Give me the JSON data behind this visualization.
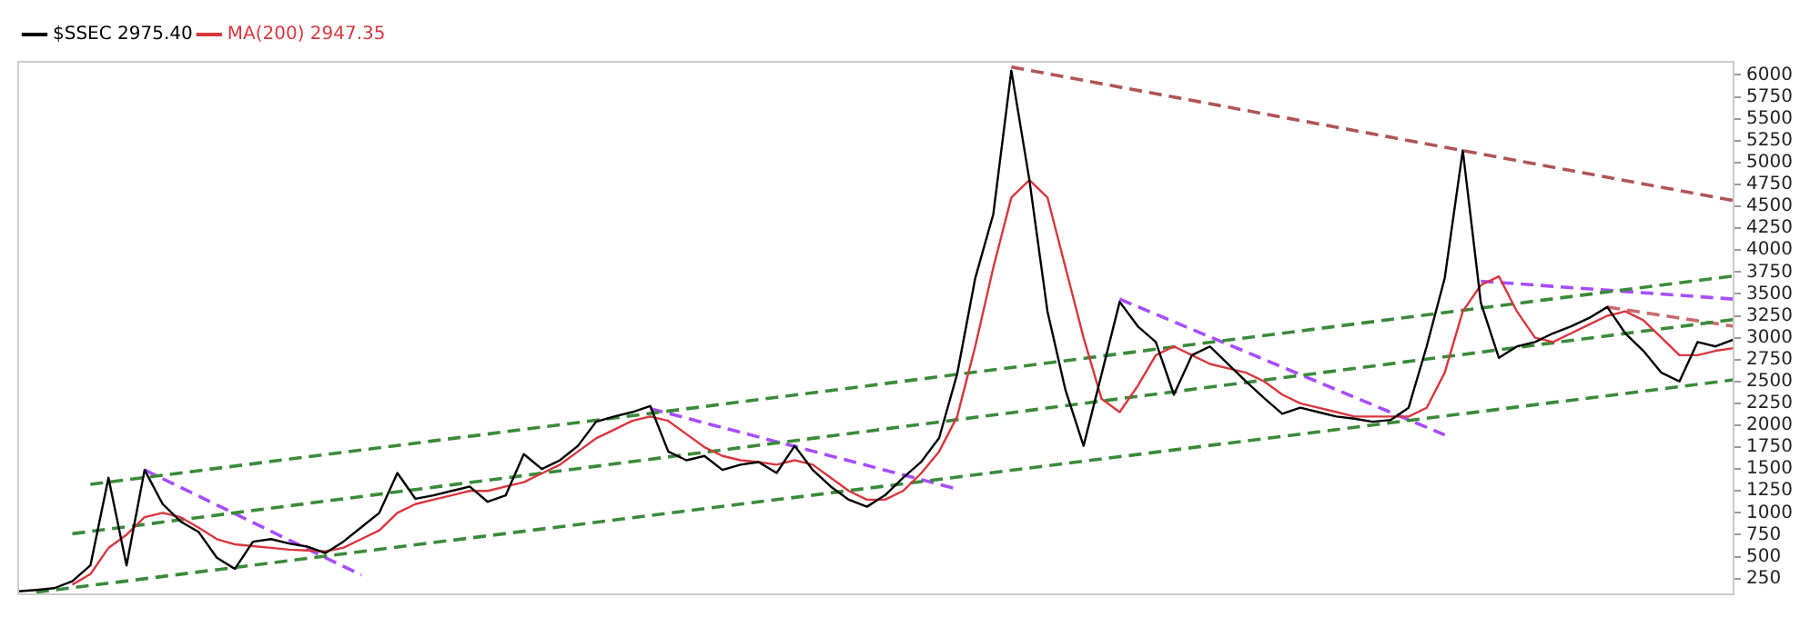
{
  "chart_data": {
    "type": "line",
    "categories": [
      null,
      null,
      null,
      null,
      null,
      null,
      null,
      null,
      null,
      null,
      null,
      null,
      null,
      null,
      null,
      null,
      null,
      null,
      null,
      null,
      null,
      null,
      null,
      null,
      null,
      null,
      null,
      null,
      null,
      null,
      null,
      null,
      null,
      null,
      null,
      null,
      null,
      null,
      null,
      null,
      null,
      null,
      null,
      null,
      null,
      null,
      null,
      null,
      null,
      null,
      null,
      null,
      null,
      null,
      null,
      null,
      null,
      null,
      null,
      null,
      null,
      null,
      null,
      null,
      null,
      null,
      null,
      null,
      null,
      null,
      null,
      null,
      null,
      null,
      null,
      null,
      null,
      null,
      null,
      null,
      null,
      null,
      null,
      null,
      null,
      null,
      null,
      null,
      null,
      null,
      null,
      null,
      null,
      null,
      null,
      null
    ],
    "series": [
      {
        "name": "$SSEC 2975.40",
        "color": "#000000",
        "line_style": "solid",
        "values": [
          104,
          120,
          140,
          220,
          400,
          1400,
          400,
          1490,
          1100,
          900,
          780,
          487,
          360,
          670,
          700,
          650,
          615,
          540,
          670,
          835,
          1000,
          1455,
          1160,
          1200,
          1250,
          1300,
          1126,
          1200,
          1670,
          1500,
          1600,
          1765,
          2040,
          2100,
          2150,
          2220,
          1700,
          1600,
          1650,
          1490,
          1550,
          1580,
          1455,
          1765,
          1490,
          1300,
          1150,
          1070,
          1200,
          1400,
          1580,
          1855,
          2586,
          3680,
          4410,
          6050,
          4800,
          3300,
          2400,
          1765,
          2586,
          3410,
          3130,
          2950,
          2350,
          2800,
          2900,
          2700,
          2500,
          2310,
          2130,
          2200,
          2150,
          2100,
          2075,
          2040,
          2060,
          2200,
          2900,
          3680,
          5140,
          3400,
          2770,
          2900,
          2950,
          3050,
          3130,
          3225,
          3350,
          3050,
          2850,
          2600,
          2500,
          2950,
          2900,
          2980
        ]
      },
      {
        "name": "MA(200) 2947.35",
        "color": "#d9363e",
        "line_style": "solid",
        "values": [
          null,
          null,
          null,
          180,
          300,
          600,
          750,
          950,
          1000,
          950,
          830,
          700,
          640,
          620,
          600,
          580,
          570,
          560,
          600,
          700,
          800,
          1000,
          1100,
          1150,
          1200,
          1250,
          1250,
          1300,
          1350,
          1450,
          1550,
          1700,
          1850,
          1950,
          2050,
          2100,
          2050,
          1900,
          1750,
          1650,
          1600,
          1580,
          1550,
          1600,
          1550,
          1400,
          1250,
          1150,
          1150,
          1250,
          1450,
          1700,
          2100,
          2900,
          3800,
          4600,
          4800,
          4600,
          3800,
          3000,
          2300,
          2150,
          2450,
          2800,
          2900,
          2800,
          2700,
          2650,
          2600,
          2500,
          2350,
          2250,
          2200,
          2150,
          2100,
          2100,
          2100,
          2100,
          2200,
          2600,
          3300,
          3600,
          3700,
          3300,
          3000,
          2950,
          3050,
          3150,
          3250,
          3300,
          3200,
          3000,
          2800,
          2800,
          2850,
          2880
        ]
      },
      {
        "color": "#3a8a3a",
        "line_style": "dashed",
        "values": [
          null,
          null,
          null,
          null,
          1325,
          null,
          null,
          null,
          null,
          null,
          null,
          null,
          null,
          null,
          null,
          null,
          null,
          null,
          null,
          null,
          null,
          null,
          null,
          null,
          null,
          null,
          null,
          null,
          null,
          null,
          null,
          null,
          null,
          null,
          null,
          null,
          null,
          null,
          null,
          null,
          null,
          null,
          null,
          null,
          null,
          null,
          null,
          null,
          null,
          null,
          null,
          null,
          null,
          null,
          null,
          null,
          null,
          null,
          null,
          null,
          null,
          null,
          null,
          null,
          null,
          null,
          null,
          null,
          null,
          null,
          null,
          null,
          null,
          null,
          null,
          null,
          null,
          null,
          null,
          null,
          null,
          null,
          null,
          null,
          null,
          null,
          null,
          null,
          null,
          null,
          null,
          null,
          null,
          null,
          null,
          3705
        ]
      },
      {
        "color": "#3a8a3a",
        "line_style": "dashed",
        "values": [
          null,
          null,
          null,
          761,
          null,
          null,
          null,
          null,
          null,
          null,
          null,
          null,
          null,
          null,
          null,
          null,
          null,
          null,
          null,
          null,
          null,
          null,
          null,
          null,
          null,
          null,
          null,
          null,
          null,
          null,
          null,
          null,
          null,
          null,
          null,
          null,
          null,
          null,
          null,
          null,
          null,
          null,
          null,
          null,
          null,
          null,
          null,
          null,
          null,
          null,
          null,
          null,
          null,
          null,
          null,
          null,
          null,
          null,
          null,
          null,
          null,
          null,
          null,
          null,
          null,
          null,
          null,
          null,
          null,
          null,
          null,
          null,
          null,
          null,
          null,
          null,
          null,
          null,
          null,
          null,
          null,
          null,
          null,
          null,
          null,
          null,
          null,
          null,
          null,
          null,
          null,
          null,
          null,
          null,
          null,
          3207
        ]
      },
      {
        "color": "#3a8a3a",
        "line_style": "dashed",
        "values": [
          null,
          93,
          null,
          null,
          null,
          null,
          null,
          null,
          null,
          null,
          null,
          null,
          null,
          null,
          null,
          null,
          null,
          null,
          null,
          null,
          null,
          null,
          null,
          null,
          null,
          null,
          null,
          null,
          null,
          null,
          null,
          null,
          null,
          null,
          null,
          null,
          null,
          null,
          null,
          null,
          null,
          null,
          null,
          null,
          null,
          null,
          null,
          null,
          null,
          null,
          null,
          null,
          null,
          null,
          null,
          null,
          null,
          null,
          null,
          null,
          null,
          null,
          null,
          null,
          null,
          null,
          null,
          null,
          null,
          null,
          null,
          null,
          null,
          null,
          null,
          null,
          null,
          null,
          null,
          null,
          null,
          null,
          null,
          null,
          null,
          null,
          null,
          null,
          null,
          null,
          null,
          null,
          null,
          null,
          null,
          2518
        ]
      },
      {
        "color": "#a64dff",
        "line_style": "dashed",
        "values": [
          null,
          null,
          null,
          null,
          null,
          null,
          null,
          1490,
          null,
          null,
          null,
          null,
          null,
          null,
          null,
          null,
          null,
          null,
          null,
          290,
          null,
          null,
          null,
          null,
          null,
          null,
          null,
          null,
          null,
          null,
          null,
          null,
          null,
          null,
          null,
          null,
          null,
          null,
          null,
          null,
          null,
          null,
          null,
          null,
          null,
          null,
          null,
          null,
          null,
          null,
          null,
          null,
          null,
          null,
          null,
          null,
          null,
          null,
          null,
          null,
          null,
          null,
          null,
          null,
          null,
          null,
          null,
          null,
          null,
          null,
          null,
          null,
          null,
          null,
          null,
          null,
          null,
          null,
          null,
          null,
          null,
          null,
          null,
          null,
          null,
          null,
          null,
          null,
          null,
          null,
          null,
          null,
          null,
          null,
          null,
          null
        ]
      },
      {
        "color": "#a64dff",
        "line_style": "dashed",
        "values": [
          null,
          null,
          null,
          null,
          null,
          null,
          null,
          null,
          null,
          null,
          null,
          null,
          null,
          null,
          null,
          null,
          null,
          null,
          null,
          null,
          null,
          null,
          null,
          null,
          null,
          null,
          null,
          null,
          null,
          null,
          null,
          null,
          null,
          null,
          null,
          2190,
          null,
          null,
          null,
          null,
          null,
          null,
          null,
          null,
          null,
          null,
          null,
          null,
          null,
          null,
          null,
          null,
          1272,
          null,
          null,
          null,
          null,
          null,
          null,
          null,
          null,
          null,
          null,
          null,
          null,
          null,
          null,
          null,
          null,
          null,
          null,
          null,
          null,
          null,
          null,
          null,
          null,
          null,
          null,
          null,
          null,
          null,
          null,
          null,
          null,
          null,
          null,
          null,
          null,
          null,
          null,
          null,
          null,
          null,
          null,
          null
        ]
      },
      {
        "color": "#a64dff",
        "line_style": "dashed",
        "values": [
          null,
          null,
          null,
          null,
          null,
          null,
          null,
          null,
          null,
          null,
          null,
          null,
          null,
          null,
          null,
          null,
          null,
          null,
          null,
          null,
          null,
          null,
          null,
          null,
          null,
          null,
          null,
          null,
          null,
          null,
          null,
          null,
          null,
          null,
          null,
          null,
          null,
          null,
          null,
          null,
          null,
          null,
          null,
          null,
          null,
          null,
          null,
          null,
          null,
          null,
          null,
          null,
          null,
          null,
          null,
          null,
          null,
          null,
          null,
          null,
          null,
          3440,
          null,
          null,
          null,
          null,
          null,
          null,
          null,
          null,
          null,
          null,
          null,
          null,
          null,
          null,
          null,
          null,
          null,
          1890,
          null,
          null,
          null,
          null,
          null,
          null,
          null,
          null,
          null,
          null,
          null,
          null,
          null,
          null,
          null,
          null
        ]
      },
      {
        "color": "#a64dff",
        "line_style": "dashed",
        "values": [
          null,
          null,
          null,
          null,
          null,
          null,
          null,
          null,
          null,
          null,
          null,
          null,
          null,
          null,
          null,
          null,
          null,
          null,
          null,
          null,
          null,
          null,
          null,
          null,
          null,
          null,
          null,
          null,
          null,
          null,
          null,
          null,
          null,
          null,
          null,
          null,
          null,
          null,
          null,
          null,
          null,
          null,
          null,
          null,
          null,
          null,
          null,
          null,
          null,
          null,
          null,
          null,
          null,
          null,
          null,
          null,
          null,
          null,
          null,
          null,
          null,
          null,
          null,
          null,
          null,
          null,
          null,
          null,
          null,
          null,
          null,
          null,
          null,
          null,
          null,
          null,
          null,
          null,
          null,
          null,
          null,
          3645,
          null,
          null,
          null,
          null,
          null,
          null,
          null,
          null,
          null,
          null,
          null,
          null,
          null,
          3440
        ]
      },
      {
        "color": "#b05555",
        "line_style": "dashed",
        "values": [
          null,
          null,
          null,
          null,
          null,
          null,
          null,
          null,
          null,
          null,
          null,
          null,
          null,
          null,
          null,
          null,
          null,
          null,
          null,
          null,
          null,
          null,
          null,
          null,
          null,
          null,
          null,
          null,
          null,
          null,
          null,
          null,
          null,
          null,
          null,
          null,
          null,
          null,
          null,
          null,
          null,
          null,
          null,
          null,
          null,
          null,
          null,
          null,
          null,
          null,
          null,
          null,
          null,
          null,
          null,
          6090,
          null,
          null,
          null,
          null,
          null,
          null,
          null,
          null,
          null,
          null,
          null,
          null,
          null,
          null,
          null,
          null,
          null,
          null,
          null,
          null,
          null,
          null,
          null,
          null,
          null,
          null,
          null,
          null,
          null,
          null,
          null,
          null,
          null,
          null,
          null,
          null,
          null,
          null,
          null,
          4565
        ]
      },
      {
        "color": "#c86a6a",
        "line_style": "dashed",
        "values": [
          null,
          null,
          null,
          null,
          null,
          null,
          null,
          null,
          null,
          null,
          null,
          null,
          null,
          null,
          null,
          null,
          null,
          null,
          null,
          null,
          null,
          null,
          null,
          null,
          null,
          null,
          null,
          null,
          null,
          null,
          null,
          null,
          null,
          null,
          null,
          null,
          null,
          null,
          null,
          null,
          null,
          null,
          null,
          null,
          null,
          null,
          null,
          null,
          null,
          null,
          null,
          null,
          null,
          null,
          null,
          null,
          null,
          null,
          null,
          null,
          null,
          null,
          null,
          null,
          null,
          null,
          null,
          null,
          null,
          null,
          null,
          null,
          null,
          null,
          null,
          null,
          null,
          null,
          null,
          null,
          null,
          null,
          null,
          null,
          null,
          null,
          null,
          null,
          3350,
          null,
          null,
          null,
          null,
          null,
          null,
          3130
        ]
      }
    ],
    "ylim": [
      70,
      6150
    ],
    "yticks": [
      250,
      500,
      750,
      1000,
      1250,
      1500,
      1750,
      2000,
      2250,
      2500,
      2750,
      3000,
      3250,
      3500,
      3750,
      4000,
      4250,
      4500,
      4750,
      5000,
      5250,
      5500,
      5750,
      6000
    ],
    "grid": false,
    "legend": "top left",
    "tick_labels": "y",
    "marker": "none"
  }
}
